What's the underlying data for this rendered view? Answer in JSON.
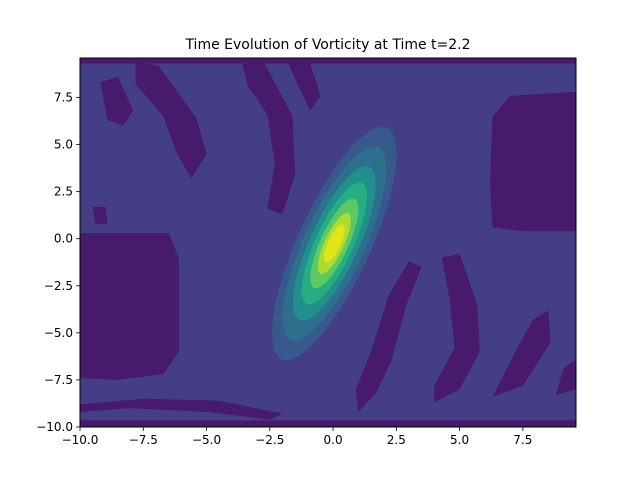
{
  "chart_data": {
    "type": "heatmap",
    "subtype": "filled-contour",
    "title": "Time Evolution of Vorticity at Time t=2.2",
    "xlabel": "",
    "ylabel": "",
    "xlim": [
      -10.0,
      9.6
    ],
    "ylim": [
      -10.0,
      9.6
    ],
    "x_ticks": [
      -10.0,
      -7.5,
      -5.0,
      -2.5,
      0.0,
      2.5,
      5.0,
      7.5
    ],
    "x_tick_labels": [
      "−10.0",
      "−7.5",
      "−5.0",
      "−2.5",
      "0.0",
      "2.5",
      "5.0",
      "7.5"
    ],
    "y_ticks": [
      -10.0,
      -7.5,
      -5.0,
      -2.5,
      0.0,
      2.5,
      5.0,
      7.5
    ],
    "y_tick_labels": [
      "−10.0",
      "−7.5",
      "−5.0",
      "−2.5",
      "0.0",
      "2.5",
      "5.0",
      "7.5"
    ],
    "colormap": "viridis",
    "background_level_color": "#433e85",
    "level_colors": [
      "#481a6c",
      "#433e85",
      "#38598c",
      "#2d708e",
      "#21908d",
      "#26ad81",
      "#5ec962",
      "#addc30",
      "#e5e419"
    ],
    "vortex": {
      "center": [
        0.05,
        -0.25
      ],
      "axis_angle_deg": 72,
      "levels": [
        {
          "a": 6.5,
          "b": 1.5,
          "color": "#38598c"
        },
        {
          "a": 5.4,
          "b": 1.25,
          "color": "#2d708e"
        },
        {
          "a": 4.3,
          "b": 1.0,
          "color": "#21908d"
        },
        {
          "a": 3.4,
          "b": 0.78,
          "color": "#26ad81"
        },
        {
          "a": 2.5,
          "b": 0.58,
          "color": "#5ec962"
        },
        {
          "a": 1.7,
          "b": 0.4,
          "color": "#addc30"
        },
        {
          "a": 1.05,
          "b": 0.26,
          "color": "#e5e419"
        }
      ]
    },
    "negative_regions": [
      {
        "name": "left-lower-block",
        "points": [
          [
            -10,
            0.3
          ],
          [
            -6.5,
            0.3
          ],
          [
            -6.1,
            -1.0
          ],
          [
            -6.1,
            -6.0
          ],
          [
            -6.7,
            -7.2
          ],
          [
            -8.5,
            -7.5
          ],
          [
            -10,
            -7.4
          ]
        ]
      },
      {
        "name": "right-upper-block",
        "points": [
          [
            9.6,
            7.8
          ],
          [
            7.0,
            7.6
          ],
          [
            6.3,
            6.5
          ],
          [
            6.2,
            3.0
          ],
          [
            6.3,
            0.6
          ],
          [
            7.5,
            0.4
          ],
          [
            9.6,
            0.4
          ]
        ]
      },
      {
        "name": "top-edge-band",
        "points": [
          [
            -10,
            9.6
          ],
          [
            9.6,
            9.6
          ],
          [
            9.6,
            9.3
          ],
          [
            -10,
            9.3
          ]
        ]
      },
      {
        "name": "bottom-edge-band",
        "points": [
          [
            -10,
            -9.65
          ],
          [
            9.6,
            -9.65
          ],
          [
            9.6,
            -10
          ],
          [
            -10,
            -10
          ]
        ]
      },
      {
        "name": "upper-left-stripe-1",
        "points": [
          [
            -9.2,
            8.3
          ],
          [
            -8.5,
            8.6
          ],
          [
            -7.9,
            6.8
          ],
          [
            -8.3,
            6.0
          ],
          [
            -8.9,
            6.3
          ]
        ]
      },
      {
        "name": "upper-left-stripe-2",
        "points": [
          [
            -7.8,
            9.4
          ],
          [
            -6.9,
            9.2
          ],
          [
            -5.4,
            6.4
          ],
          [
            -5.0,
            4.5
          ],
          [
            -5.6,
            3.2
          ],
          [
            -6.2,
            4.6
          ],
          [
            -6.7,
            6.5
          ],
          [
            -7.8,
            8.2
          ]
        ]
      },
      {
        "name": "upper-left-stripe-3",
        "points": [
          [
            -9.5,
            1.7
          ],
          [
            -9.0,
            1.7
          ],
          [
            -8.9,
            0.8
          ],
          [
            -9.4,
            0.8
          ]
        ]
      },
      {
        "name": "upper-mid-stripe",
        "points": [
          [
            -3.6,
            9.4
          ],
          [
            -2.7,
            9.3
          ],
          [
            -1.6,
            6.5
          ],
          [
            -1.5,
            3.4
          ],
          [
            -2.0,
            1.3
          ],
          [
            -2.6,
            1.6
          ],
          [
            -2.3,
            4.0
          ],
          [
            -2.6,
            6.6
          ],
          [
            -3.4,
            8.2
          ]
        ]
      },
      {
        "name": "upper-center-stripe",
        "points": [
          [
            -1.8,
            9.4
          ],
          [
            -0.9,
            9.3
          ],
          [
            -0.5,
            7.6
          ],
          [
            -0.9,
            6.8
          ],
          [
            -1.4,
            8.2
          ]
        ]
      },
      {
        "name": "lower-right-stripe-1",
        "points": [
          [
            1.0,
            -9.2
          ],
          [
            1.7,
            -8.2
          ],
          [
            2.3,
            -6.5
          ],
          [
            2.9,
            -3.5
          ],
          [
            3.5,
            -1.5
          ],
          [
            3.0,
            -1.2
          ],
          [
            2.2,
            -3.0
          ],
          [
            1.5,
            -6.0
          ],
          [
            0.9,
            -8.0
          ]
        ]
      },
      {
        "name": "lower-right-stripe-2",
        "points": [
          [
            4.0,
            -8.7
          ],
          [
            5.0,
            -8.0
          ],
          [
            5.8,
            -6.0
          ],
          [
            5.7,
            -3.5
          ],
          [
            5.0,
            -0.8
          ],
          [
            4.3,
            -1.0
          ],
          [
            4.6,
            -3.2
          ],
          [
            4.8,
            -5.8
          ],
          [
            4.0,
            -7.8
          ]
        ]
      },
      {
        "name": "lower-right-stripe-3",
        "points": [
          [
            6.3,
            -8.4
          ],
          [
            7.5,
            -7.8
          ],
          [
            8.6,
            -5.5
          ],
          [
            8.5,
            -3.8
          ],
          [
            7.9,
            -4.3
          ],
          [
            7.2,
            -6.0
          ]
        ]
      },
      {
        "name": "lower-right-stripe-4",
        "points": [
          [
            8.8,
            -8.3
          ],
          [
            9.6,
            -8.0
          ],
          [
            9.6,
            -6.4
          ],
          [
            9.1,
            -6.9
          ]
        ]
      },
      {
        "name": "bottom-left-stripe",
        "points": [
          [
            -10,
            -8.8
          ],
          [
            -7.5,
            -8.5
          ],
          [
            -4.5,
            -8.6
          ],
          [
            -2.0,
            -9.3
          ],
          [
            -2.5,
            -9.6
          ],
          [
            -5.0,
            -9.2
          ],
          [
            -8.0,
            -9.0
          ],
          [
            -10,
            -9.2
          ]
        ]
      }
    ]
  }
}
